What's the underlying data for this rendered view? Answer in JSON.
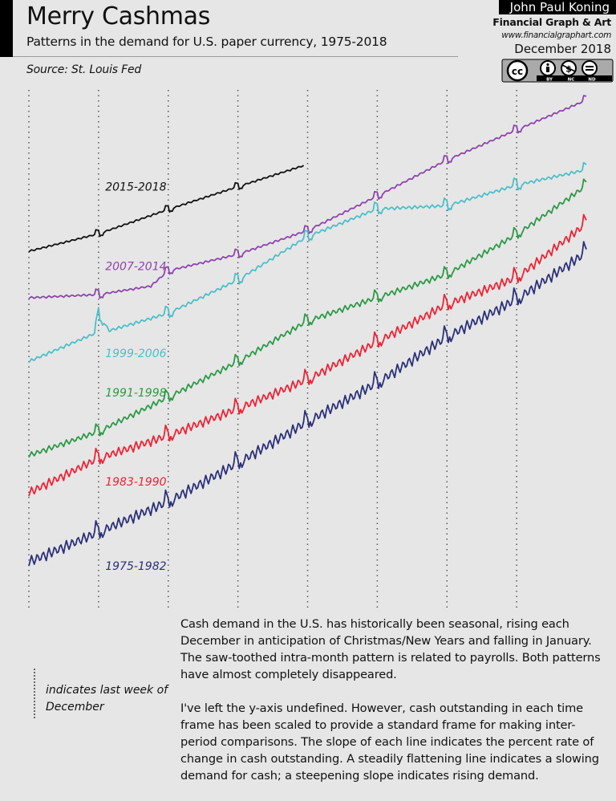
{
  "header": {
    "title": "Merry Cashmas",
    "subtitle": "Patterns in the demand for U.S. paper currency, 1975-2018",
    "source": "Source: St. Louis Fed"
  },
  "credits": {
    "author": "John Paul Koning",
    "brand": "Financial Graph & Art",
    "url": "www.financialgraphart.com",
    "date": "December 2018",
    "license_icon": "cc-by-nc-nd-icon",
    "license_labels": [
      "BY",
      "NC",
      "ND"
    ]
  },
  "legend": {
    "marker": "dotted-vertical-line",
    "text": "indicates last week of December"
  },
  "notes": [
    "Cash demand in the U.S. has historically been seasonal, rising each December in anticipation of Christmas/New Years and falling in January. The saw-toothed intra-month pattern is related to payrolls. Both patterns have almost completely disappeared.",
    "I've left the y-axis undefined. However, cash outstanding in each time frame has been scaled to provide a standard frame for making inter-period comparisons. The slope of each line indicates the percent rate of change in cash outstanding. A steadily flattening line indicates a slowing demand for cash; a steepening slope indicates rising demand."
  ],
  "chart_data": {
    "type": "line",
    "title": "Merry Cashmas",
    "subtitle": "Patterns in the demand for U.S. paper currency, 1975-2018",
    "xlabel": "",
    "ylabel": "",
    "y_axis_defined": false,
    "x_unit": "years since start of period (weekly data)",
    "x_range": [
      0,
      8
    ],
    "ylim": [
      0,
      100
    ],
    "grid": "vertical dotted lines at last week of December",
    "december_markers": [
      0,
      1,
      2,
      3,
      4,
      5,
      6,
      7
    ],
    "series": [
      {
        "name": "2015-2018",
        "color": "#111111",
        "x": [
          0,
          1,
          2,
          3,
          3.95
        ],
        "values": [
          67.6,
          70.9,
          75.5,
          79.8,
          83.8
        ],
        "december_spike": 1.0,
        "intra_month_amplitude": 0.25
      },
      {
        "name": "2007-2014",
        "color": "#8e44ad",
        "x": [
          0,
          1,
          1.75,
          2,
          3,
          4,
          5,
          6,
          7,
          8
        ],
        "values": [
          58.8,
          59.4,
          61.0,
          63.9,
          67.0,
          71.5,
          78.0,
          84.8,
          90.5,
          96.1
        ],
        "december_spike": 1.2,
        "intra_month_amplitude": 0.3
      },
      {
        "name": "1999-2006",
        "color": "#4bbfc9",
        "x": [
          0,
          0.95,
          1,
          1.15,
          2,
          3,
          4,
          5,
          6,
          7,
          8
        ],
        "values": [
          46.7,
          52.0,
          55.8,
          52.5,
          55.8,
          62.1,
          70.3,
          75.5,
          76.1,
          80.0,
          82.9
        ],
        "december_spike": 1.6,
        "intra_month_amplitude": 0.45
      },
      {
        "name": "1991-1998",
        "color": "#2a9a45",
        "x": [
          0,
          1,
          2,
          3,
          4,
          5,
          6,
          7,
          8
        ],
        "values": [
          28.8,
          33.3,
          39.8,
          46.5,
          54.2,
          58.6,
          63.0,
          70.5,
          79.7
        ],
        "december_spike": 1.6,
        "intra_month_amplitude": 0.8
      },
      {
        "name": "1983-1990",
        "color": "#ee2233",
        "x": [
          0,
          1,
          2,
          3,
          4,
          5,
          6,
          7,
          8
        ],
        "values": [
          21.5,
          28.0,
          32.3,
          37.4,
          42.9,
          50.0,
          57.1,
          62.1,
          72.3
        ],
        "december_spike": 2.0,
        "intra_month_amplitude": 1.3
      },
      {
        "name": "1975-1982",
        "color": "#2b2f7a",
        "x": [
          0,
          1,
          2,
          3,
          4,
          5,
          6,
          7,
          8
        ],
        "values": [
          8.3,
          13.9,
          19.7,
          27.0,
          34.8,
          42.1,
          50.8,
          57.9,
          66.7
        ],
        "december_spike": 2.2,
        "intra_month_amplitude": 1.6
      }
    ],
    "annotations": [
      {
        "text": "2015-2018",
        "series": "2015-2018"
      },
      {
        "text": "2007-2014",
        "series": "2007-2014"
      },
      {
        "text": "1999-2006",
        "series": "1999-2006"
      },
      {
        "text": "1991-1998",
        "series": "1991-1998"
      },
      {
        "text": "1983-1990",
        "series": "1983-1990"
      },
      {
        "text": "1975-1982",
        "series": "1975-1982"
      }
    ]
  }
}
